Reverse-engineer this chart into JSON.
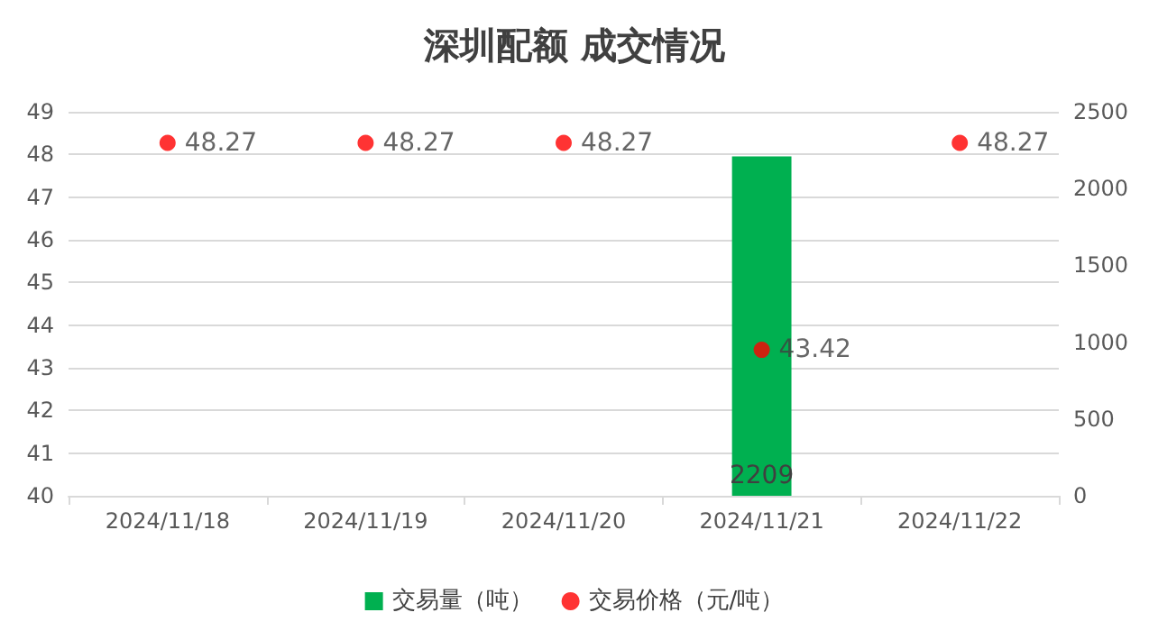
{
  "chart_data": {
    "type": "bar",
    "title": "深圳配额 成交情况",
    "categories": [
      "2024/11/18",
      "2024/11/19",
      "2024/11/20",
      "2024/11/21",
      "2024/11/22"
    ],
    "series": [
      {
        "name": "交易量（吨）",
        "axis": "y2",
        "color": "#00b050",
        "values": [
          null,
          null,
          null,
          2209,
          null
        ]
      },
      {
        "name": "交易价格（元/吨）",
        "type": "scatter",
        "color": "#ff0000",
        "values": [
          48.27,
          48.27,
          48.27,
          43.42,
          48.27
        ]
      }
    ],
    "ylim": [
      40,
      49
    ],
    "yticks": [
      40,
      41,
      42,
      43,
      44,
      45,
      46,
      47,
      48,
      49
    ],
    "y2lim": [
      0,
      2500
    ],
    "y2ticks": [
      0,
      500,
      1000,
      1500,
      2000,
      2500
    ],
    "grid": "y",
    "legend": "bottom",
    "marker": "circle",
    "data_labels": true
  }
}
